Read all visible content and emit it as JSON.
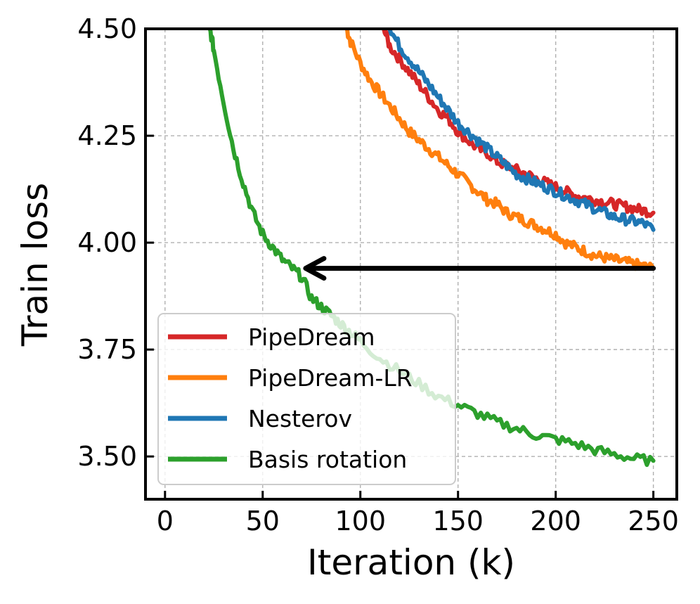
{
  "chart_data": {
    "type": "line",
    "xlabel": "Iteration (k)",
    "ylabel": "Train loss",
    "xlim": [
      -10,
      262
    ],
    "ylim": [
      3.4,
      4.5
    ],
    "xticks": [
      0,
      50,
      100,
      150,
      200,
      250
    ],
    "yticks": [
      3.5,
      3.75,
      4.0,
      4.25,
      4.5
    ],
    "xtick_labels": [
      "0",
      "50",
      "100",
      "150",
      "200",
      "250"
    ],
    "ytick_labels": [
      "3.50",
      "3.75",
      "4.00",
      "4.25",
      "4.50"
    ],
    "grid": true,
    "legend_position": "lower-left",
    "series": [
      {
        "name": "PipeDream",
        "color": "#d62728",
        "x": [
          112,
          115,
          120,
          125,
          130,
          135,
          140,
          145,
          150,
          155,
          160,
          165,
          170,
          175,
          180,
          185,
          190,
          195,
          200,
          205,
          210,
          215,
          220,
          225,
          230,
          235,
          240,
          245,
          250
        ],
        "y": [
          4.5,
          4.46,
          4.43,
          4.4,
          4.37,
          4.34,
          4.31,
          4.29,
          4.26,
          4.24,
          4.22,
          4.21,
          4.19,
          4.18,
          4.17,
          4.16,
          4.15,
          4.14,
          4.13,
          4.12,
          4.11,
          4.105,
          4.1,
          4.095,
          4.09,
          4.085,
          4.08,
          4.075,
          4.07
        ]
      },
      {
        "name": "PipeDream-LR",
        "color": "#ff7f0e",
        "x": [
          93,
          95,
          100,
          105,
          110,
          115,
          120,
          125,
          130,
          135,
          140,
          145,
          150,
          155,
          160,
          165,
          170,
          175,
          180,
          185,
          190,
          195,
          200,
          205,
          210,
          215,
          220,
          225,
          230,
          235,
          240,
          245,
          250
        ],
        "y": [
          4.5,
          4.47,
          4.42,
          4.38,
          4.35,
          4.32,
          4.29,
          4.26,
          4.24,
          4.22,
          4.2,
          4.18,
          4.16,
          4.14,
          4.12,
          4.1,
          4.09,
          4.07,
          4.06,
          4.05,
          4.04,
          4.03,
          4.02,
          4.0,
          3.99,
          3.98,
          3.97,
          3.965,
          3.96,
          3.955,
          3.95,
          3.945,
          3.94
        ]
      },
      {
        "name": "Nesterov",
        "color": "#1f77b4",
        "x": [
          115,
          120,
          125,
          130,
          135,
          140,
          145,
          150,
          155,
          160,
          165,
          170,
          175,
          180,
          185,
          190,
          195,
          200,
          205,
          210,
          215,
          220,
          225,
          230,
          235,
          240,
          245,
          250
        ],
        "y": [
          4.5,
          4.46,
          4.43,
          4.4,
          4.37,
          4.34,
          4.31,
          4.28,
          4.26,
          4.24,
          4.22,
          4.2,
          4.18,
          4.16,
          4.15,
          4.14,
          4.13,
          4.12,
          4.11,
          4.1,
          4.09,
          4.08,
          4.07,
          4.06,
          4.055,
          4.05,
          4.045,
          4.03
        ]
      },
      {
        "name": "Basis rotation",
        "color": "#2ca02c",
        "x": [
          23,
          25,
          30,
          35,
          40,
          45,
          50,
          55,
          60,
          65,
          70,
          75,
          80,
          85,
          90,
          95,
          100,
          110,
          120,
          130,
          140,
          150,
          160,
          170,
          180,
          190,
          200,
          210,
          220,
          230,
          240,
          250
        ],
        "y": [
          4.5,
          4.45,
          4.33,
          4.22,
          4.14,
          4.07,
          4.02,
          3.99,
          3.96,
          3.94,
          3.92,
          3.87,
          3.85,
          3.83,
          3.81,
          3.79,
          3.77,
          3.73,
          3.7,
          3.67,
          3.64,
          3.62,
          3.6,
          3.58,
          3.565,
          3.55,
          3.54,
          3.53,
          3.515,
          3.505,
          3.495,
          3.49
        ]
      }
    ],
    "annotations": [
      {
        "type": "arrow",
        "from": [
          250,
          3.94
        ],
        "to": [
          72,
          3.94
        ],
        "color": "#000000"
      }
    ]
  }
}
